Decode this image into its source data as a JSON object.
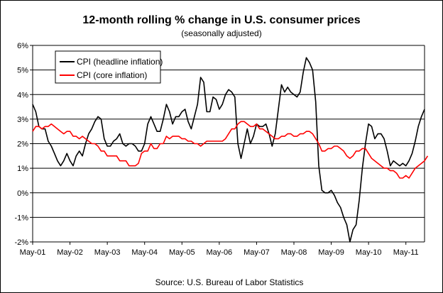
{
  "chart_data": {
    "type": "line",
    "title": "12-month rolling % change in U.S. consumer prices",
    "subtitle": "(seasonally adjusted)",
    "source": "Source: U.S. Bureau of Labor Statistics",
    "x_tick_labels": [
      "May-01",
      "May-02",
      "May-03",
      "May-04",
      "May-05",
      "May-06",
      "May-07",
      "May-08",
      "May-09",
      "May-10",
      "May-11"
    ],
    "y_tick_labels": [
      "-2%",
      "-1%",
      "0%",
      "1%",
      "2%",
      "3%",
      "4%",
      "5%",
      "6%"
    ],
    "ylim": [
      -2,
      6
    ],
    "grid": "horizontal",
    "legend_position": "top-left",
    "series": [
      {
        "name": "CPI (headline inflation)",
        "color": "#000000",
        "values": [
          3.6,
          3.3,
          2.7,
          2.6,
          2.6,
          2.1,
          1.9,
          1.6,
          1.3,
          1.1,
          1.3,
          1.6,
          1.3,
          1.1,
          1.5,
          1.7,
          1.5,
          2.0,
          2.4,
          2.6,
          2.9,
          3.1,
          3.0,
          2.2,
          1.9,
          1.9,
          2.1,
          2.2,
          2.4,
          2.0,
          1.9,
          2.0,
          2.0,
          1.9,
          1.7,
          1.7,
          2.0,
          2.8,
          3.1,
          2.8,
          2.5,
          2.5,
          3.0,
          3.6,
          3.3,
          2.8,
          3.1,
          3.1,
          3.3,
          3.4,
          2.9,
          2.6,
          3.1,
          3.6,
          4.7,
          4.5,
          3.3,
          3.3,
          3.9,
          3.8,
          3.4,
          3.6,
          4.0,
          4.2,
          4.1,
          3.9,
          2.0,
          1.4,
          2.0,
          2.6,
          2.0,
          2.3,
          2.8,
          2.7,
          2.7,
          2.8,
          2.4,
          1.9,
          2.4,
          3.4,
          4.4,
          4.1,
          4.3,
          4.1,
          4.0,
          3.9,
          4.1,
          4.9,
          5.5,
          5.3,
          5.0,
          3.7,
          1.1,
          0.1,
          0.0,
          0.0,
          0.1,
          -0.1,
          -0.4,
          -0.6,
          -1.0,
          -1.3,
          -2.0,
          -1.5,
          -1.3,
          -0.3,
          1.0,
          2.0,
          2.8,
          2.7,
          2.2,
          2.4,
          2.4,
          2.2,
          1.7,
          1.1,
          1.3,
          1.2,
          1.1,
          1.2,
          1.1,
          1.3,
          1.6,
          2.1,
          2.7,
          3.1,
          3.4
        ]
      },
      {
        "name": "CPI (core inflation)",
        "color": "#ff0000",
        "values": [
          2.5,
          2.7,
          2.7,
          2.6,
          2.7,
          2.7,
          2.8,
          2.7,
          2.6,
          2.5,
          2.4,
          2.5,
          2.5,
          2.3,
          2.3,
          2.2,
          2.3,
          2.2,
          2.1,
          2.0,
          2.0,
          1.9,
          1.7,
          1.7,
          1.5,
          1.5,
          1.5,
          1.5,
          1.3,
          1.3,
          1.3,
          1.1,
          1.1,
          1.1,
          1.2,
          1.6,
          1.7,
          1.7,
          2.0,
          1.8,
          1.8,
          2.0,
          2.0,
          2.3,
          2.2,
          2.3,
          2.3,
          2.3,
          2.2,
          2.2,
          2.1,
          2.1,
          2.0,
          2.0,
          1.9,
          2.0,
          2.1,
          2.1,
          2.1,
          2.1,
          2.1,
          2.1,
          2.2,
          2.4,
          2.6,
          2.6,
          2.8,
          2.9,
          2.9,
          2.8,
          2.7,
          2.7,
          2.8,
          2.6,
          2.6,
          2.5,
          2.4,
          2.3,
          2.2,
          2.2,
          2.3,
          2.3,
          2.4,
          2.4,
          2.3,
          2.3,
          2.4,
          2.4,
          2.5,
          2.5,
          2.4,
          2.2,
          2.0,
          1.7,
          1.7,
          1.8,
          1.8,
          1.9,
          1.9,
          1.8,
          1.7,
          1.5,
          1.4,
          1.5,
          1.7,
          1.7,
          1.8,
          1.8,
          1.6,
          1.4,
          1.3,
          1.2,
          1.1,
          1.0,
          1.0,
          0.9,
          0.9,
          0.8,
          0.6,
          0.6,
          0.7,
          0.6,
          0.8,
          1.0,
          1.1,
          1.2,
          1.3,
          1.5
        ]
      }
    ]
  }
}
